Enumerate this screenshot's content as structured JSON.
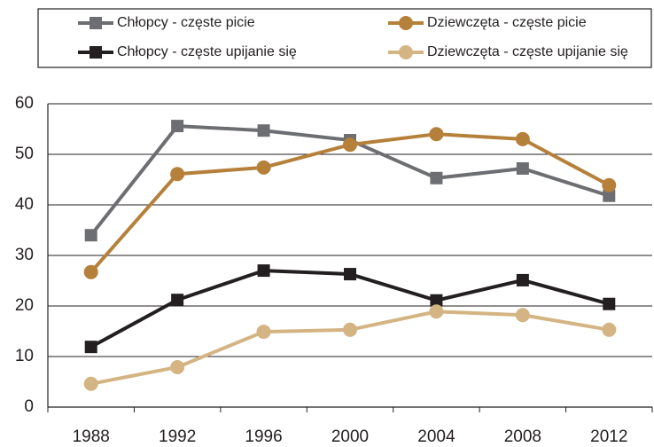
{
  "chart_data": {
    "type": "line",
    "categories": [
      "1988",
      "1992",
      "1996",
      "2000",
      "2004",
      "2008",
      "2012"
    ],
    "series": [
      {
        "name": "Chłopcy - częste picie",
        "color": "#6d6e71",
        "marker": "square",
        "values": [
          34,
          55.6,
          54.7,
          52.8,
          45.3,
          47.2,
          41.8
        ]
      },
      {
        "name": "Dziewczęta - częste picie",
        "color": "#b5803a",
        "marker": "circle",
        "values": [
          26.7,
          46.1,
          47.4,
          51.9,
          54.0,
          53.0,
          43.9
        ]
      },
      {
        "name": "Chłopcy - częste upijanie się",
        "color": "#231f20",
        "marker": "square",
        "values": [
          11.9,
          21.2,
          27.0,
          26.3,
          21.1,
          25.1,
          20.4
        ]
      },
      {
        "name": "Dziewczęta - częste upijanie się",
        "color": "#d4b483",
        "marker": "circle",
        "values": [
          4.6,
          7.9,
          14.9,
          15.3,
          18.9,
          18.2,
          15.3
        ]
      }
    ],
    "ylim": [
      0,
      60
    ],
    "yticks": [
      0,
      10,
      20,
      30,
      40,
      50,
      60
    ],
    "grid": true
  }
}
